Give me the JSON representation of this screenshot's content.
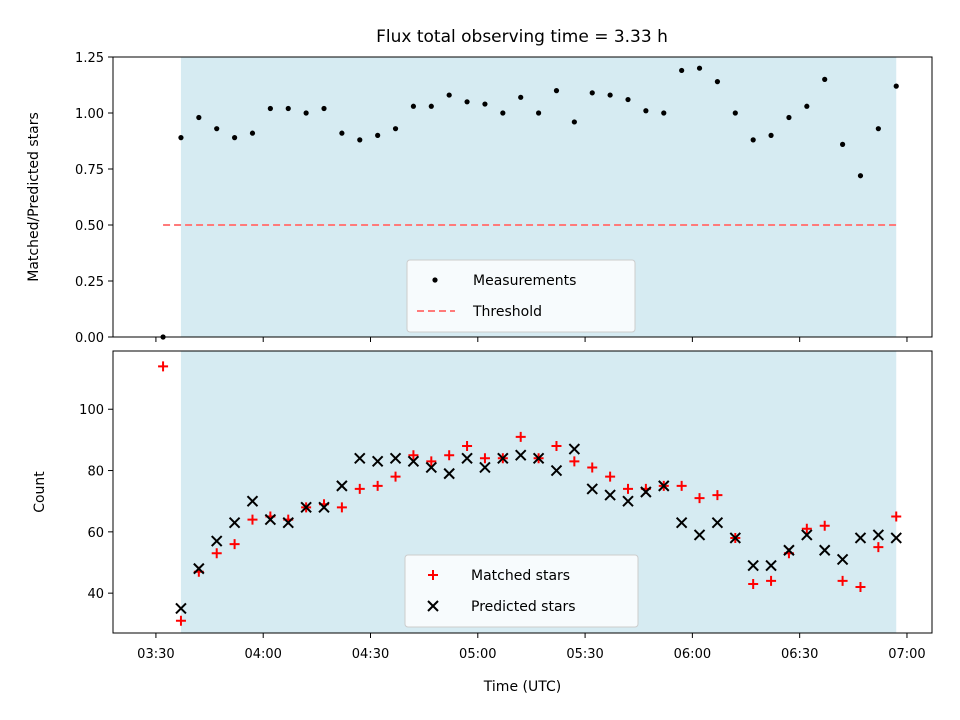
{
  "chart_data": [
    {
      "type": "scatter",
      "title": "Flux total observing time = 3.33 h",
      "xlabel": "",
      "ylabel": "Matched/Predicted stars",
      "ylim": [
        0,
        1.25
      ],
      "yticks": [
        "0.00",
        "0.25",
        "0.50",
        "0.75",
        "1.00",
        "1.25"
      ],
      "grid": false,
      "legend_placement": "lower-center",
      "observing_window": [
        "03:37",
        "06:57"
      ],
      "series": [
        {
          "name": "Measurements",
          "marker": "dot",
          "color": "#000000",
          "x": [
            "03:32",
            "03:37",
            "03:42",
            "03:47",
            "03:52",
            "03:57",
            "04:02",
            "04:07",
            "04:12",
            "04:17",
            "04:22",
            "04:27",
            "04:32",
            "04:37",
            "04:42",
            "04:47",
            "04:52",
            "04:57",
            "05:02",
            "05:07",
            "05:12",
            "05:17",
            "05:22",
            "05:27",
            "05:32",
            "05:37",
            "05:42",
            "05:47",
            "05:52",
            "05:57",
            "06:02",
            "06:07",
            "06:12",
            "06:17",
            "06:22",
            "06:27",
            "06:32",
            "06:37",
            "06:42",
            "06:47",
            "06:52",
            "06:57"
          ],
          "y": [
            0.0,
            0.89,
            0.98,
            0.93,
            0.89,
            0.91,
            1.02,
            1.02,
            1.0,
            1.02,
            0.91,
            0.88,
            0.9,
            0.93,
            1.03,
            1.03,
            1.08,
            1.05,
            1.04,
            1.0,
            1.07,
            1.0,
            1.1,
            0.96,
            1.09,
            1.08,
            1.06,
            1.01,
            1.0,
            1.19,
            1.2,
            1.14,
            1.0,
            0.88,
            0.9,
            0.98,
            1.03,
            1.15,
            0.86,
            0.72,
            0.93,
            1.12
          ]
        },
        {
          "name": "Threshold",
          "style": "dashed",
          "color": "#ff7a7a",
          "x": [
            "03:32",
            "06:57"
          ],
          "y": [
            0.5,
            0.5
          ]
        }
      ]
    },
    {
      "type": "scatter",
      "title": "",
      "xlabel": "Time (UTC)",
      "ylabel": "Count",
      "ylim": [
        27,
        119
      ],
      "yticks": [
        "40",
        "60",
        "80",
        "100"
      ],
      "xticks": [
        "03:30",
        "04:00",
        "04:30",
        "05:00",
        "05:30",
        "06:00",
        "06:30",
        "07:00"
      ],
      "grid": false,
      "legend_placement": "lower-center",
      "observing_window": [
        "03:37",
        "06:57"
      ],
      "series": [
        {
          "name": "Matched stars",
          "marker": "plus",
          "color": "#ff0000",
          "x": [
            "03:32",
            "03:37",
            "03:42",
            "03:47",
            "03:52",
            "03:57",
            "04:02",
            "04:07",
            "04:12",
            "04:17",
            "04:22",
            "04:27",
            "04:32",
            "04:37",
            "04:42",
            "04:47",
            "04:52",
            "04:57",
            "05:02",
            "05:07",
            "05:12",
            "05:17",
            "05:22",
            "05:27",
            "05:32",
            "05:37",
            "05:42",
            "05:47",
            "05:52",
            "05:57",
            "06:02",
            "06:07",
            "06:12",
            "06:17",
            "06:22",
            "06:27",
            "06:32",
            "06:37",
            "06:42",
            "06:47",
            "06:52",
            "06:57"
          ],
          "y": [
            114,
            31,
            47,
            53,
            56,
            64,
            65,
            64,
            68,
            69,
            68,
            74,
            75,
            78,
            85,
            83,
            85,
            88,
            84,
            84,
            91,
            84,
            88,
            83,
            81,
            78,
            74,
            74,
            75,
            75,
            71,
            72,
            58,
            43,
            44,
            53,
            61,
            62,
            44,
            42,
            55,
            65
          ]
        },
        {
          "name": "Predicted stars",
          "marker": "x",
          "color": "#000000",
          "x": [
            "03:37",
            "03:42",
            "03:47",
            "03:52",
            "03:57",
            "04:02",
            "04:07",
            "04:12",
            "04:17",
            "04:22",
            "04:27",
            "04:32",
            "04:37",
            "04:42",
            "04:47",
            "04:52",
            "04:57",
            "05:02",
            "05:07",
            "05:12",
            "05:17",
            "05:22",
            "05:27",
            "05:32",
            "05:37",
            "05:42",
            "05:47",
            "05:52",
            "05:57",
            "06:02",
            "06:07",
            "06:12",
            "06:17",
            "06:22",
            "06:27",
            "06:32",
            "06:37",
            "06:42",
            "06:47",
            "06:52",
            "06:57"
          ],
          "y": [
            35,
            48,
            57,
            63,
            70,
            64,
            63,
            68,
            68,
            75,
            84,
            83,
            84,
            83,
            81,
            79,
            84,
            81,
            84,
            85,
            84,
            80,
            87,
            74,
            72,
            70,
            73,
            75,
            63,
            59,
            63,
            58,
            49,
            49,
            54,
            59,
            54,
            51,
            58,
            59,
            58
          ]
        }
      ]
    }
  ]
}
